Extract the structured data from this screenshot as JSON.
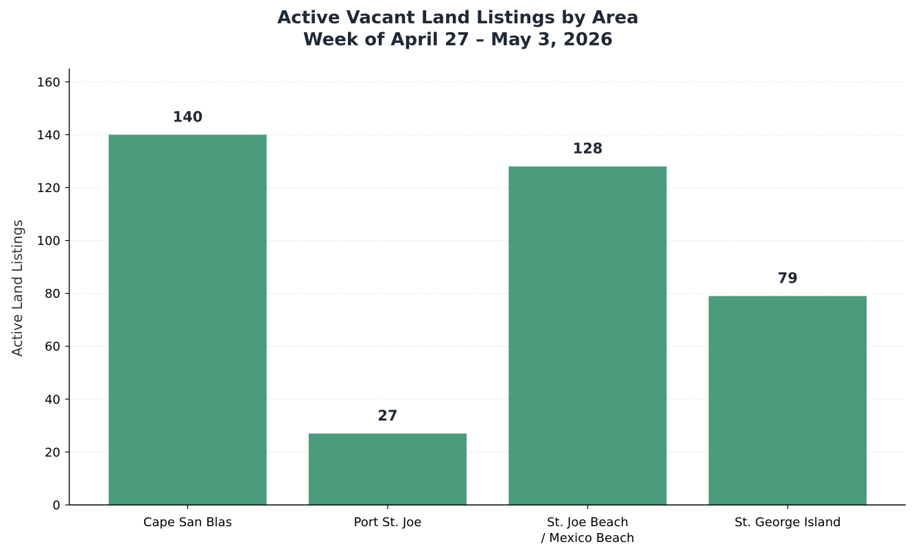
{
  "chart_data": {
    "type": "bar",
    "title": "Active Vacant Land Listings by Area",
    "subtitle": "Week of April 27 – May 3, 2026",
    "xlabel": "",
    "ylabel": "Active Land Listings",
    "categories": [
      [
        "Cape San Blas"
      ],
      [
        "Port St. Joe"
      ],
      [
        "St. Joe Beach",
        "/ Mexico Beach"
      ],
      [
        "St. George Island"
      ]
    ],
    "values": [
      140,
      27,
      128,
      79
    ],
    "ylim": [
      0,
      165
    ],
    "yticks": [
      0,
      20,
      40,
      60,
      80,
      100,
      120,
      140,
      160
    ],
    "grid": "horizontal, dotted",
    "colors": {
      "bar": "#4a9c7d",
      "label": "#1f2937",
      "axis": "#000000",
      "grid": "#d9d9d9"
    }
  }
}
